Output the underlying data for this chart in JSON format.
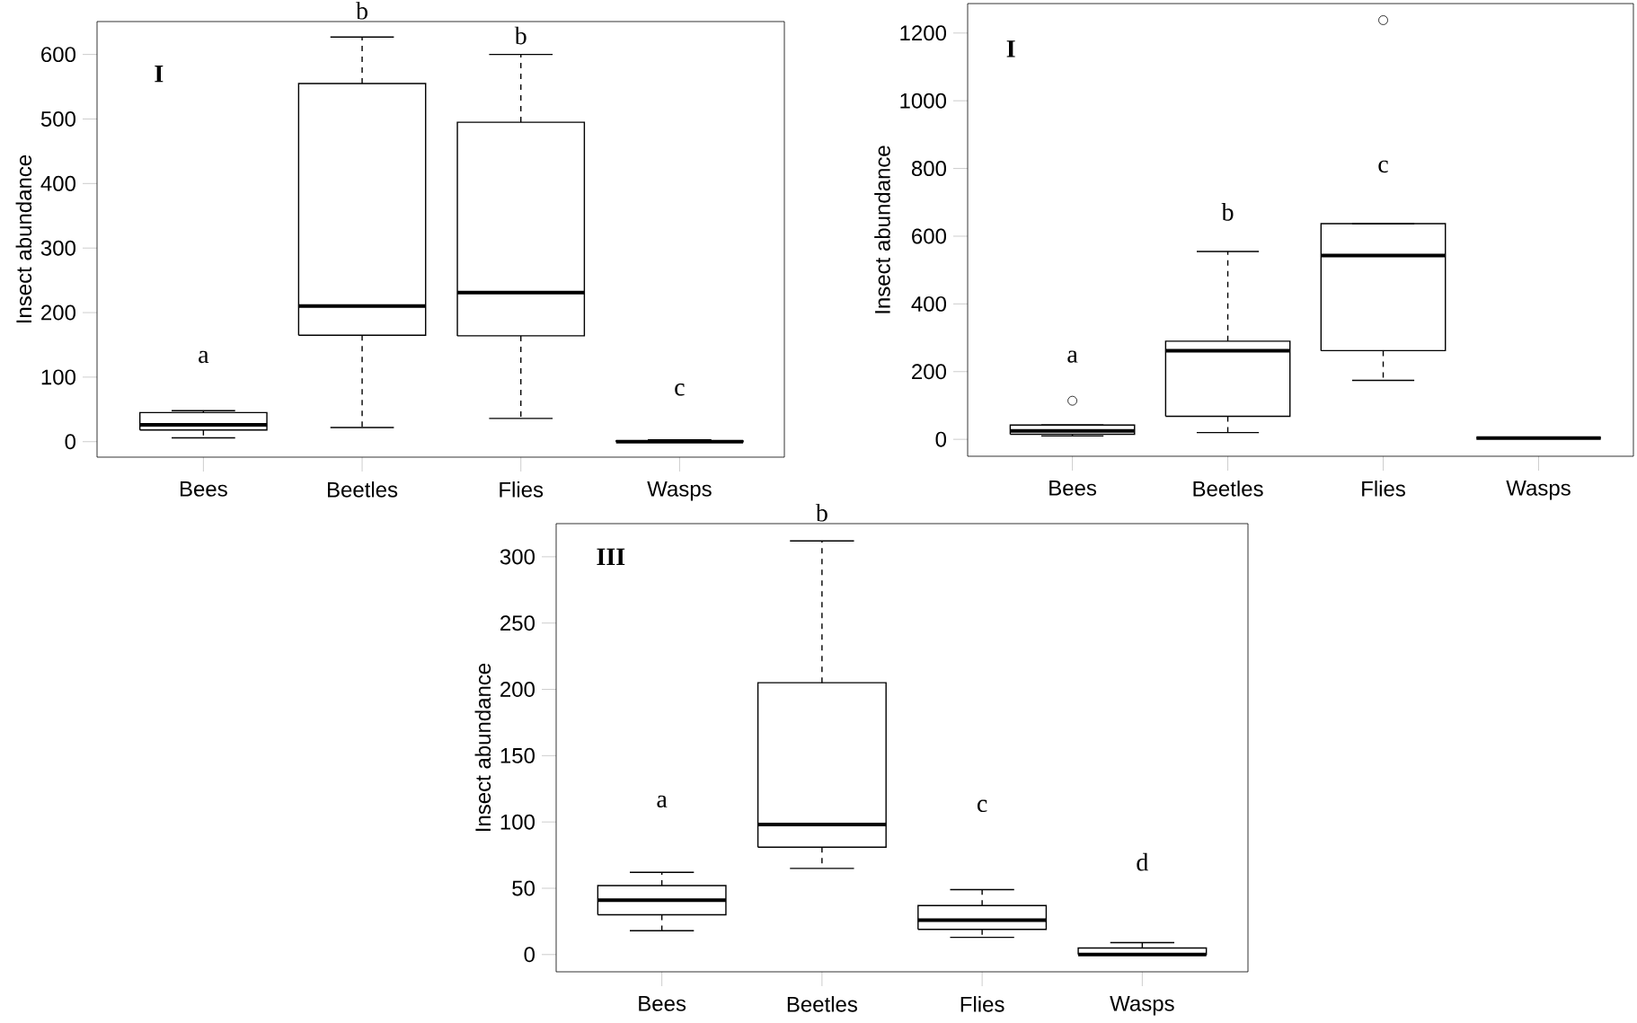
{
  "chart_data": [
    {
      "type": "box",
      "title": "I",
      "ylabel": "Insect abundance",
      "categories": [
        "Bees",
        "Beetles",
        "Flies",
        "Wasps"
      ],
      "boxes": [
        {
          "low": 6,
          "q1": 18,
          "median": 26,
          "q3": 45,
          "high": 48
        },
        {
          "low": 22,
          "q1": 165,
          "median": 210,
          "q3": 555,
          "high": 627
        },
        {
          "low": 36,
          "q1": 164,
          "median": 231,
          "q3": 495,
          "high": 600
        },
        {
          "low": 0,
          "q1": 0,
          "median": 0,
          "q3": 1,
          "high": 3
        }
      ],
      "ylim": [
        -24,
        651
      ],
      "yticks": [
        0,
        100,
        200,
        300,
        400,
        500,
        600
      ],
      "annotations": [
        "a",
        "b",
        "b",
        "c"
      ]
    },
    {
      "type": "box",
      "title": "I",
      "ylabel": "Insect abundance",
      "categories": [
        "Bees",
        "Beetles",
        "Flies",
        "Wasps"
      ],
      "boxes": [
        {
          "low": 10,
          "q1": 15,
          "median": 25,
          "q3": 42,
          "high": 42,
          "outliers": [
            114
          ]
        },
        {
          "low": 20,
          "q1": 68,
          "median": 262,
          "q3": 290,
          "high": 555
        },
        {
          "low": 174,
          "q1": 262,
          "median": 543,
          "q3": 637,
          "high": 637,
          "outliers": [
            1238
          ]
        },
        {
          "low": 4,
          "q1": 4,
          "median": 4,
          "q3": 4,
          "high": 4
        }
      ],
      "ylim": [
        -50,
        1287
      ],
      "yticks": [
        0,
        200,
        400,
        600,
        800,
        1000,
        1200
      ],
      "annotations": [
        "a",
        "b",
        "c"
      ]
    },
    {
      "type": "box",
      "title": "III",
      "ylabel": "Insect abundance",
      "categories": [
        "Bees",
        "Beetles",
        "Flies",
        "Wasps"
      ],
      "boxes": [
        {
          "low": 18,
          "q1": 30,
          "median": 41,
          "q3": 52,
          "high": 62
        },
        {
          "low": 65,
          "q1": 81,
          "median": 98,
          "q3": 205,
          "high": 312
        },
        {
          "low": 13,
          "q1": 19,
          "median": 26,
          "q3": 37,
          "high": 49
        },
        {
          "low": 0,
          "q1": 0,
          "median": 0,
          "q3": 5,
          "high": 9
        }
      ],
      "ylim": [
        -13,
        325
      ],
      "yticks": [
        0,
        50,
        100,
        150,
        200,
        250,
        300
      ],
      "annotations": [
        "a",
        "b",
        "c",
        "d"
      ]
    }
  ]
}
